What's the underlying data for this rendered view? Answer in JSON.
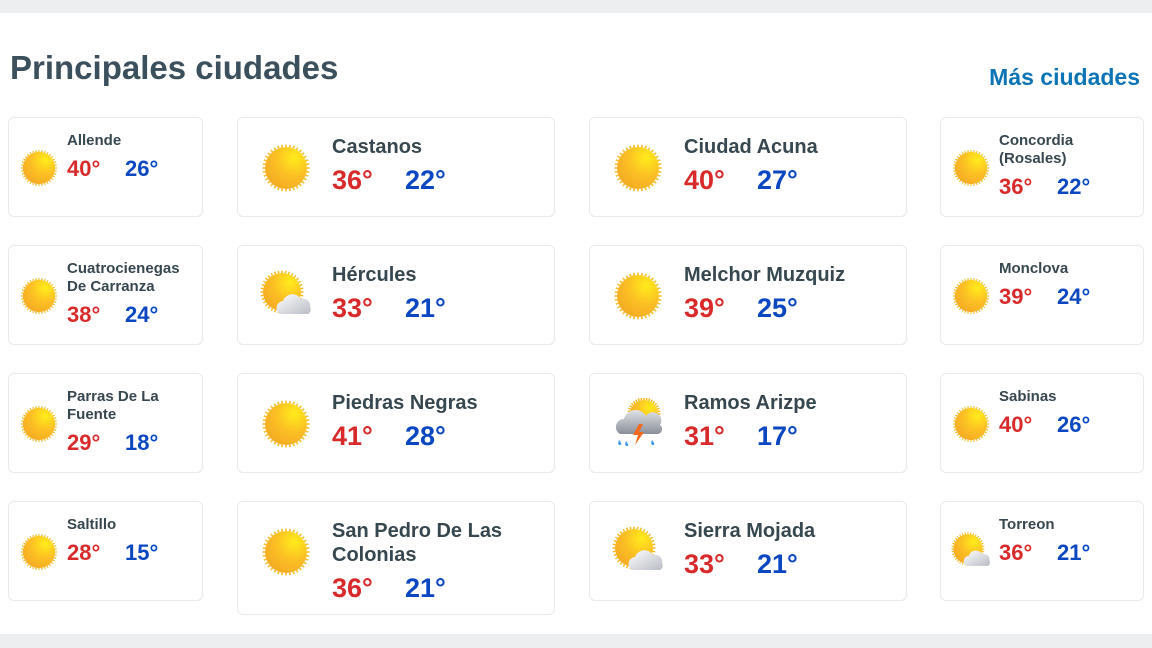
{
  "header": {
    "title": "Principales ciudades",
    "more_link": "Más ciudades"
  },
  "colors": {
    "max": "#d82a2a",
    "min": "#0b47c0",
    "link": "#0b74b5"
  },
  "cities": [
    {
      "name": "Allende",
      "max": "40°",
      "min": "26°",
      "icon": "sun-icon"
    },
    {
      "name": "Castanos",
      "max": "36°",
      "min": "22°",
      "icon": "sun-icon"
    },
    {
      "name": "Ciudad Acuna",
      "max": "40°",
      "min": "27°",
      "icon": "sun-icon"
    },
    {
      "name": "Concordia (Rosales)",
      "max": "36°",
      "min": "22°",
      "icon": "sun-icon"
    },
    {
      "name": "Cuatrocienegas De Carranza",
      "max": "38°",
      "min": "24°",
      "icon": "sun-icon"
    },
    {
      "name": "Hércules",
      "max": "33°",
      "min": "21°",
      "icon": "partly-cloudy-icon"
    },
    {
      "name": "Melchor Muzquiz",
      "max": "39°",
      "min": "25°",
      "icon": "sun-icon"
    },
    {
      "name": "Monclova",
      "max": "39°",
      "min": "24°",
      "icon": "sun-icon"
    },
    {
      "name": "Parras De La Fuente",
      "max": "29°",
      "min": "18°",
      "icon": "sun-icon"
    },
    {
      "name": "Piedras Negras",
      "max": "41°",
      "min": "28°",
      "icon": "sun-icon"
    },
    {
      "name": "Ramos Arizpe",
      "max": "31°",
      "min": "17°",
      "icon": "thunderstorm-icon"
    },
    {
      "name": "Sabinas",
      "max": "40°",
      "min": "26°",
      "icon": "sun-icon"
    },
    {
      "name": "Saltillo",
      "max": "28°",
      "min": "15°",
      "icon": "sun-icon"
    },
    {
      "name": "San Pedro De Las Colonias",
      "max": "36°",
      "min": "21°",
      "icon": "sun-icon"
    },
    {
      "name": "Sierra Mojada",
      "max": "33°",
      "min": "21°",
      "icon": "partly-cloudy-icon"
    },
    {
      "name": "Torreon",
      "max": "36°",
      "min": "21°",
      "icon": "partly-cloudy-icon"
    }
  ]
}
